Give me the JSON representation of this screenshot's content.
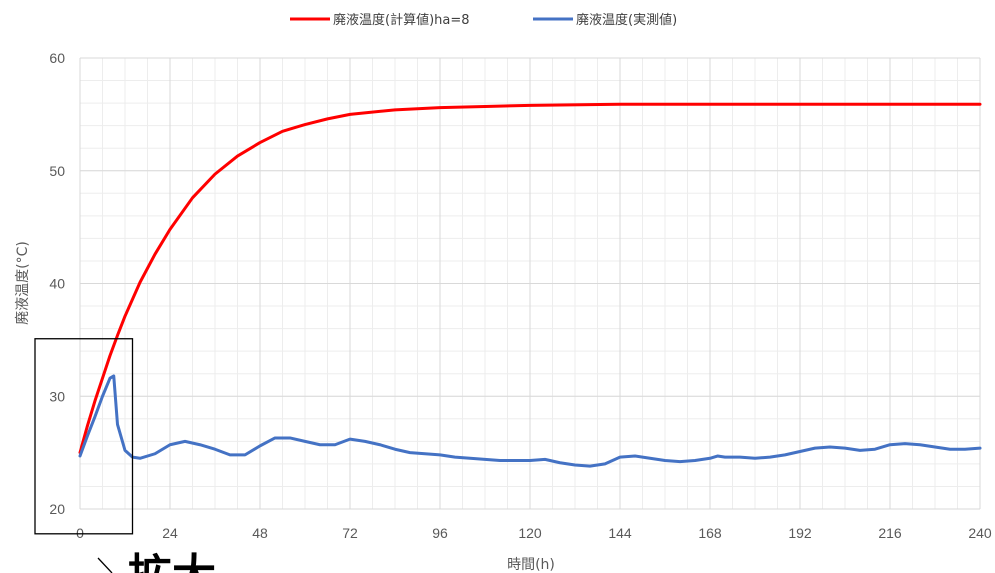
{
  "chart_data": {
    "type": "line",
    "ylabel": "廃液温度(°C)",
    "xlabel": "時間(h)",
    "xlim": [
      0,
      240
    ],
    "ylim": [
      20,
      60
    ],
    "x_ticks": [
      0,
      24,
      48,
      72,
      96,
      120,
      144,
      168,
      192,
      216,
      240
    ],
    "y_ticks": [
      20,
      30,
      40,
      50,
      60
    ],
    "grid": true,
    "minor_grid": true,
    "legend_position": "top-center",
    "series": [
      {
        "name": "廃液温度(計算値)ha=8",
        "color": "#ff0000",
        "x": [
          0,
          2,
          4,
          6,
          8,
          10,
          12,
          16,
          20,
          24,
          30,
          36,
          42,
          48,
          54,
          60,
          66,
          72,
          84,
          96,
          108,
          120,
          144,
          168,
          192,
          216,
          240
        ],
        "values": [
          25.0,
          27.4,
          29.6,
          31.6,
          33.6,
          35.4,
          37.1,
          40.1,
          42.6,
          44.8,
          47.6,
          49.7,
          51.3,
          52.5,
          53.5,
          54.1,
          54.6,
          55.0,
          55.4,
          55.6,
          55.7,
          55.8,
          55.9,
          55.9,
          55.9,
          55.9,
          55.9
        ]
      },
      {
        "name": "廃液温度(実測値)",
        "color": "#4472c4",
        "x": [
          0,
          2,
          4,
          6,
          8,
          9,
          10,
          12,
          14,
          16,
          20,
          24,
          28,
          32,
          36,
          40,
          44,
          48,
          52,
          56,
          60,
          64,
          68,
          72,
          76,
          80,
          84,
          88,
          92,
          96,
          100,
          104,
          108,
          112,
          116,
          120,
          124,
          128,
          132,
          136,
          140,
          144,
          148,
          152,
          156,
          160,
          164,
          168,
          170,
          172,
          176,
          180,
          184,
          188,
          192,
          196,
          200,
          204,
          208,
          212,
          216,
          220,
          224,
          228,
          232,
          236,
          240
        ],
        "values": [
          24.7,
          26.5,
          28.2,
          30.0,
          31.6,
          31.8,
          27.5,
          25.2,
          24.6,
          24.5,
          24.9,
          25.7,
          26.0,
          25.7,
          25.3,
          24.8,
          24.8,
          25.6,
          26.3,
          26.3,
          26.0,
          25.7,
          25.7,
          26.2,
          26.0,
          25.7,
          25.3,
          25.0,
          24.9,
          24.8,
          24.6,
          24.5,
          24.4,
          24.3,
          24.3,
          24.3,
          24.4,
          24.1,
          23.9,
          23.8,
          24.0,
          24.6,
          24.7,
          24.5,
          24.3,
          24.2,
          24.3,
          24.5,
          24.7,
          24.6,
          24.6,
          24.5,
          24.6,
          24.8,
          25.1,
          25.4,
          25.5,
          25.4,
          25.2,
          25.3,
          25.7,
          25.8,
          25.7,
          25.5,
          25.3,
          25.3,
          25.4
        ]
      }
    ],
    "annotation": {
      "text": "拡大",
      "box_x": [
        -12,
        14
      ],
      "box_y": [
        17.8,
        35.1
      ]
    }
  }
}
